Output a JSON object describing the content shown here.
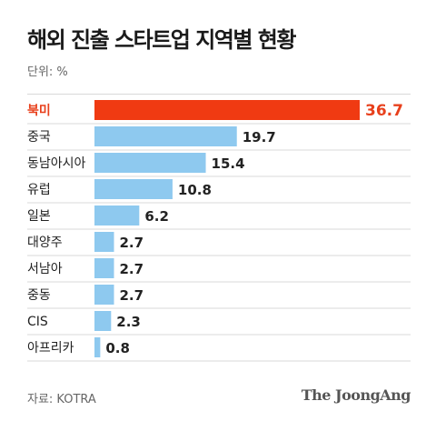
{
  "header": {
    "title": "해외 진출 스타트업 지역별 현황",
    "unit_label": "단위: %"
  },
  "footer": {
    "source": "자료: KOTRA",
    "brand": "The JoongAng"
  },
  "colors": {
    "highlight": "#f03a12",
    "highlight_text": "#e8401c",
    "bar": "#8ec9ef",
    "divider": "#d9d9d9"
  },
  "chart_data": {
    "type": "bar",
    "orientation": "horizontal",
    "categories": [
      "북미",
      "중국",
      "동남아시아",
      "유럽",
      "일본",
      "대양주",
      "서남아",
      "중동",
      "CIS",
      "아프리카"
    ],
    "values": [
      36.7,
      19.7,
      15.4,
      10.8,
      6.2,
      2.7,
      2.7,
      2.7,
      2.3,
      0.8
    ],
    "value_labels": [
      "36.7",
      "19.7",
      "15.4",
      "10.8",
      "6.2",
      "2.7",
      "2.7",
      "2.7",
      "2.3",
      "0.8"
    ],
    "highlight_index": 0,
    "title": "해외 진출 스타트업 지역별 현황",
    "xlabel": "",
    "ylabel": "",
    "xlim": [
      0,
      36.7
    ],
    "grid": false,
    "legend": "none"
  }
}
